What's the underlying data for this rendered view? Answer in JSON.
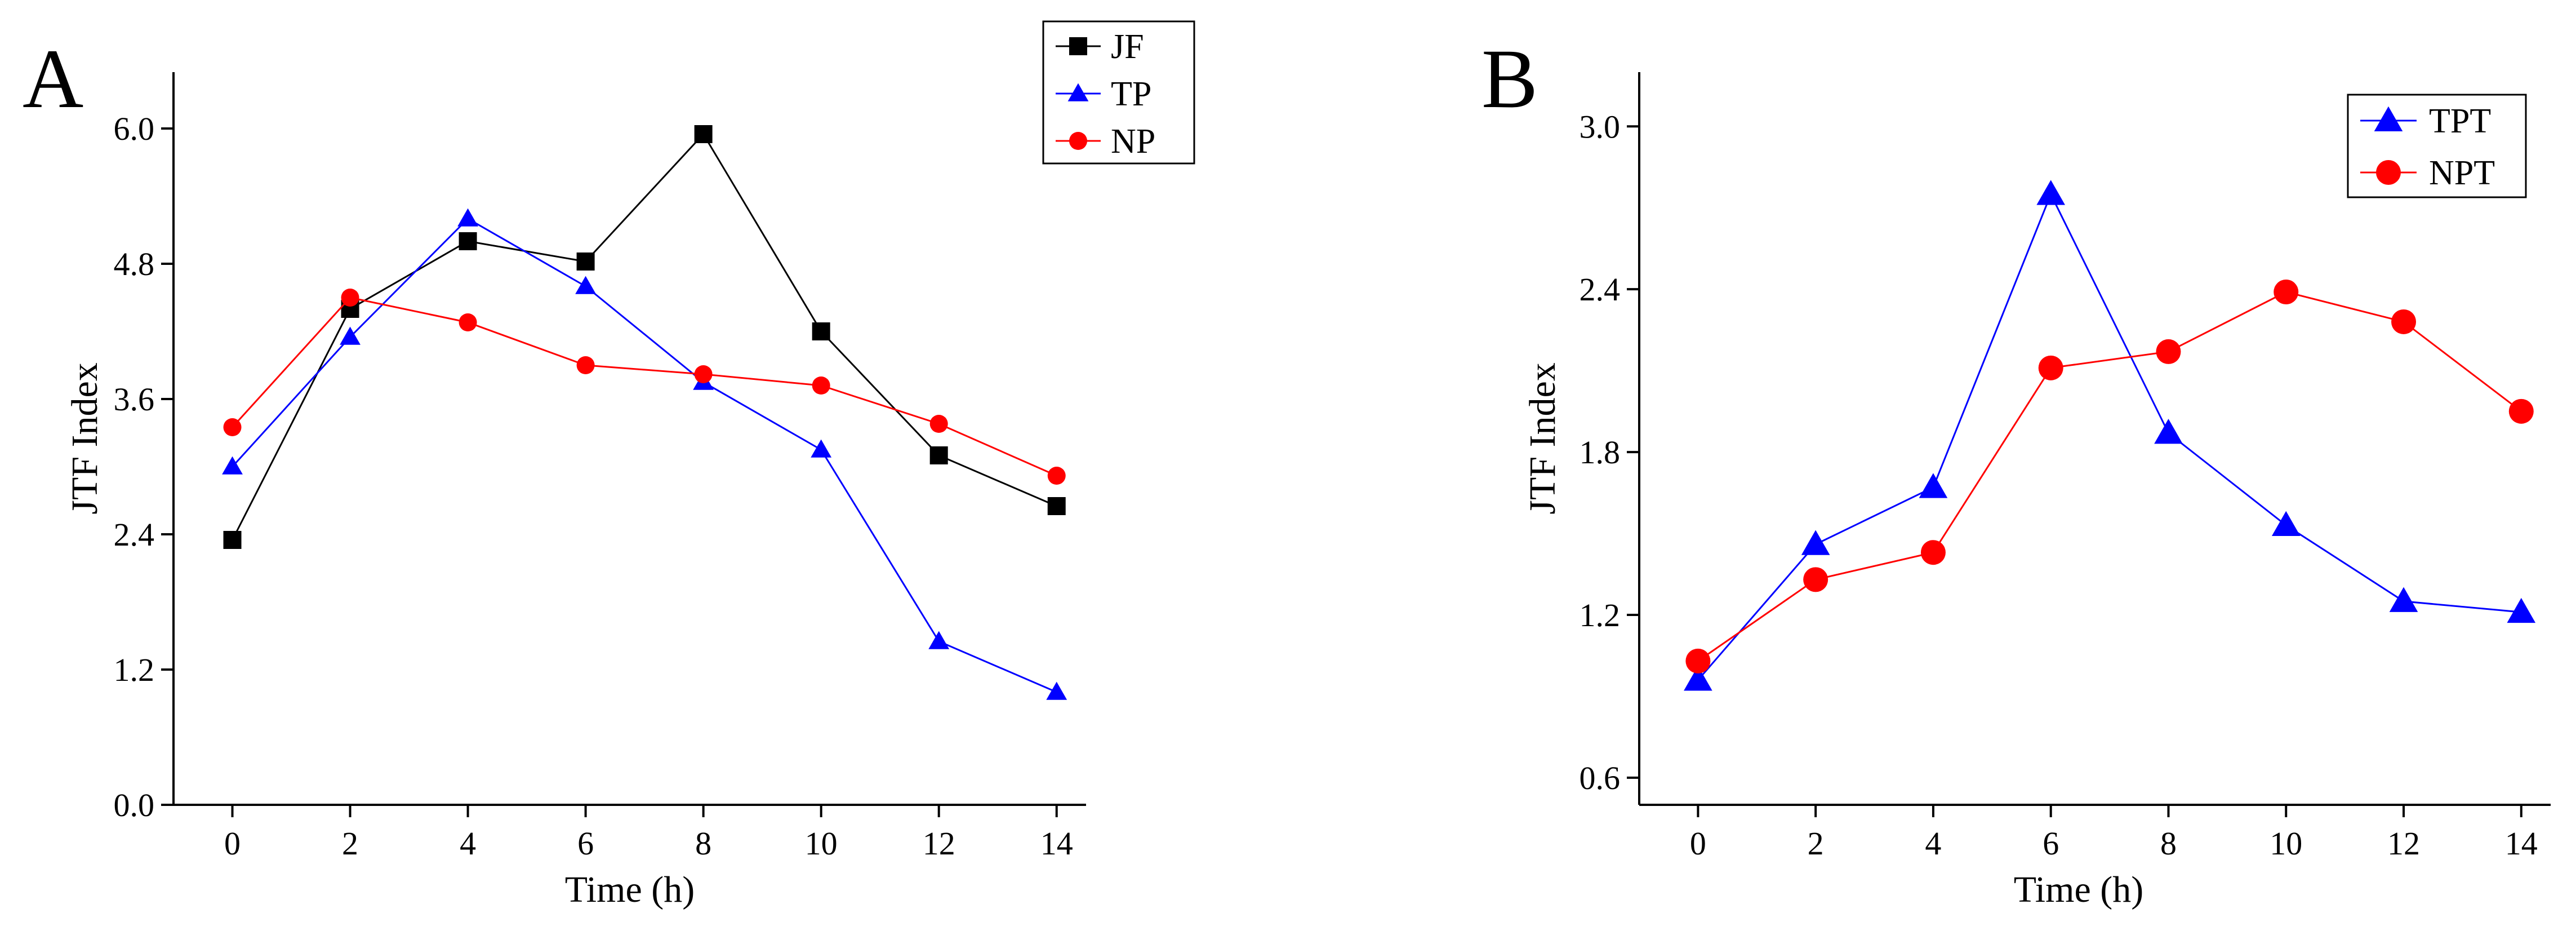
{
  "chart_data": [
    {
      "panel": "A",
      "type": "line",
      "xlabel": "Time (h)",
      "ylabel": "JTF Index",
      "xlim": [
        -1,
        14.5
      ],
      "ylim": [
        0,
        6.5
      ],
      "xticks": [
        0,
        2,
        4,
        6,
        8,
        10,
        12,
        14
      ],
      "yticks": [
        0.0,
        1.2,
        2.4,
        3.6,
        4.8,
        6.0
      ],
      "ytick_labels": [
        "0.0",
        "1.2",
        "2.4",
        "3.6",
        "4.8",
        "6.0"
      ],
      "legend_position": "top-right",
      "grid": false,
      "x": [
        0,
        2,
        4,
        6,
        8,
        10,
        12,
        14
      ],
      "series": [
        {
          "name": "JF",
          "color": "#000000",
          "marker": "square",
          "values": [
            2.35,
            4.4,
            5.0,
            4.82,
            5.95,
            4.2,
            3.1,
            2.65
          ]
        },
        {
          "name": "TP",
          "color": "#0000ff",
          "marker": "triangle",
          "values": [
            3.0,
            4.15,
            5.2,
            4.6,
            3.75,
            3.15,
            1.45,
            1.0
          ]
        },
        {
          "name": "NP",
          "color": "#ff0000",
          "marker": "circle",
          "values": [
            3.35,
            4.5,
            4.28,
            3.9,
            3.82,
            3.72,
            3.38,
            2.92
          ]
        }
      ]
    },
    {
      "panel": "B",
      "type": "line",
      "xlabel": "Time (h)",
      "ylabel": "JTF Index",
      "xlim": [
        -1,
        14.5
      ],
      "ylim": [
        0.5,
        3.2
      ],
      "xticks": [
        0,
        2,
        4,
        6,
        8,
        10,
        12,
        14
      ],
      "yticks": [
        0.6,
        1.2,
        1.8,
        2.4,
        3.0
      ],
      "ytick_labels": [
        "0.6",
        "1.2",
        "1.8",
        "2.4",
        "3.0"
      ],
      "legend_position": "top-right",
      "grid": false,
      "x": [
        0,
        2,
        4,
        6,
        8,
        10,
        12,
        14
      ],
      "series": [
        {
          "name": "TPT",
          "color": "#0000ff",
          "marker": "triangle",
          "values": [
            0.96,
            1.46,
            1.67,
            2.75,
            1.87,
            1.53,
            1.25,
            1.21
          ]
        },
        {
          "name": "NPT",
          "color": "#ff0000",
          "marker": "circle",
          "values": [
            1.03,
            1.33,
            1.43,
            2.11,
            2.17,
            2.39,
            2.28,
            1.95
          ]
        }
      ]
    }
  ]
}
